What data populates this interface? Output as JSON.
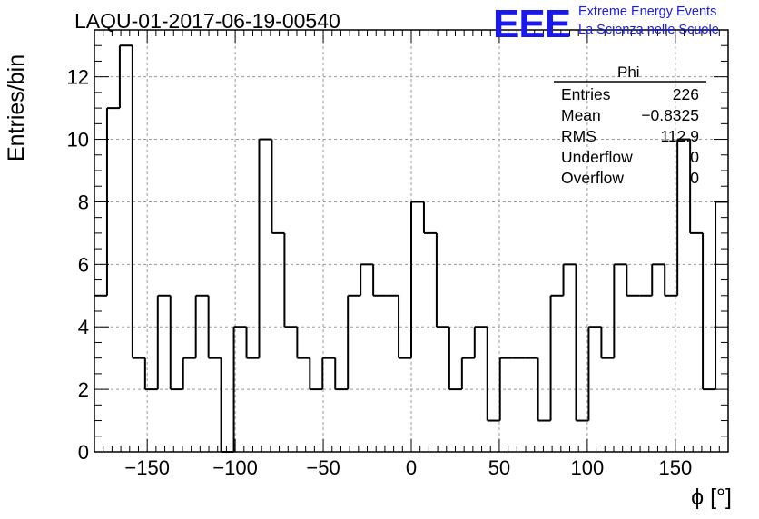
{
  "header": {
    "title": "LAQU-01-2017-06-19-00540",
    "logo_text": "EEE",
    "logo_line1": "Extreme Energy Events",
    "logo_line2": "La Scienza nelle Scuole"
  },
  "stats": {
    "name": "Phi",
    "rows": [
      {
        "key": "Entries",
        "value": "226"
      },
      {
        "key": "Mean",
        "value": "−0.8325"
      },
      {
        "key": "RMS",
        "value": "112.9"
      },
      {
        "key": "Underflow",
        "value": "0"
      },
      {
        "key": "Overflow",
        "value": "0"
      }
    ]
  },
  "colors": {
    "line": "#000000",
    "grid": "#9a9a9a",
    "logo": "#1919ee"
  },
  "chart_data": {
    "type": "bar",
    "style": "step-histogram",
    "xlabel": "ϕ [°]",
    "ylabel": "Entries/bin",
    "xlim": [
      -180,
      180
    ],
    "ylim": [
      0,
      13.5
    ],
    "bin_width": 7.2,
    "x_ticks": [
      -150,
      -100,
      -50,
      0,
      50,
      100,
      150
    ],
    "x_tick_labels": [
      "−150",
      "−100",
      "−50",
      "0",
      "50",
      "100",
      "150"
    ],
    "y_ticks": [
      0,
      2,
      4,
      6,
      8,
      10,
      12
    ],
    "y_tick_labels": [
      "0",
      "2",
      "4",
      "6",
      "8",
      "10",
      "12"
    ],
    "grid": true,
    "values": [
      5,
      11,
      13,
      3,
      2,
      5,
      2,
      3,
      5,
      3,
      0,
      4,
      3,
      10,
      7,
      4,
      3,
      2,
      3,
      2,
      5,
      6,
      5,
      5,
      3,
      8,
      7,
      4,
      2,
      3,
      4,
      1,
      3,
      3,
      3,
      1,
      5,
      6,
      1,
      4,
      3,
      6,
      5,
      5,
      6,
      5,
      10,
      7,
      2,
      8
    ]
  }
}
